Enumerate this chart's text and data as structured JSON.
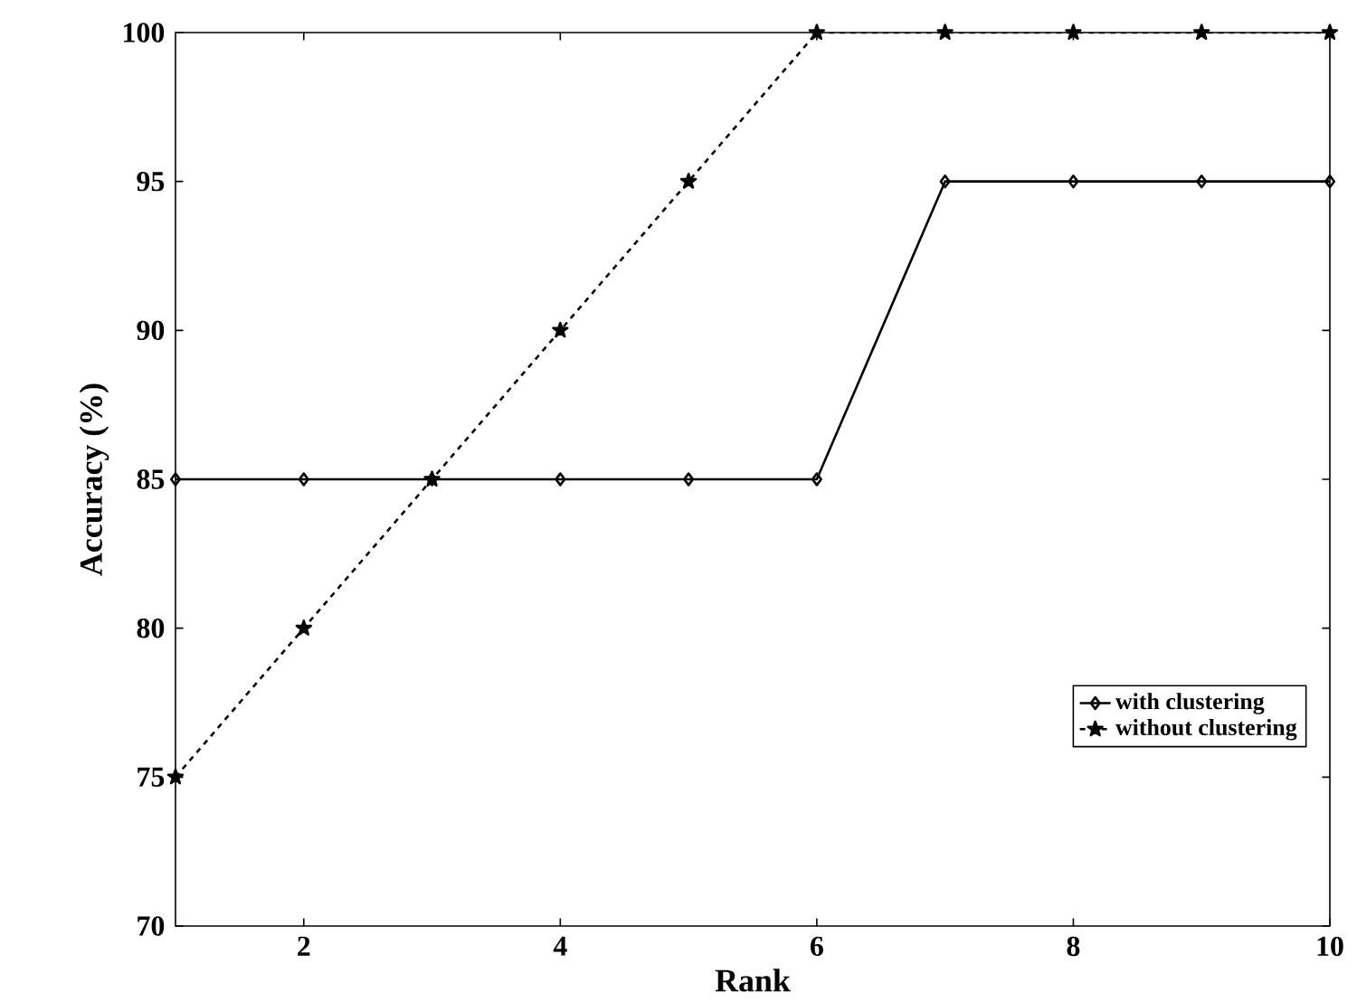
{
  "chart_data": {
    "type": "line",
    "xlabel": "Rank",
    "ylabel": "Accuracy (%)",
    "x": [
      1,
      2,
      3,
      4,
      5,
      6,
      7,
      8,
      9,
      10
    ],
    "series": [
      {
        "name": "with clustering",
        "color": "#000000",
        "marker": "diamond",
        "line_style": "solid",
        "values": [
          85,
          85,
          85,
          85,
          85,
          85,
          95,
          95,
          95,
          95
        ]
      },
      {
        "name": "without clustering",
        "color": "#000000",
        "marker": "star",
        "line_style": "dashed",
        "values": [
          75,
          80,
          85,
          90,
          95,
          100,
          100,
          100,
          100,
          100
        ]
      }
    ],
    "xlim": [
      1,
      10
    ],
    "xticks": [
      2,
      4,
      6,
      8,
      10
    ],
    "ylim": [
      70,
      100
    ],
    "yticks": [
      70,
      75,
      80,
      85,
      90,
      95,
      100
    ],
    "grid": false,
    "legend": "bottom right"
  }
}
